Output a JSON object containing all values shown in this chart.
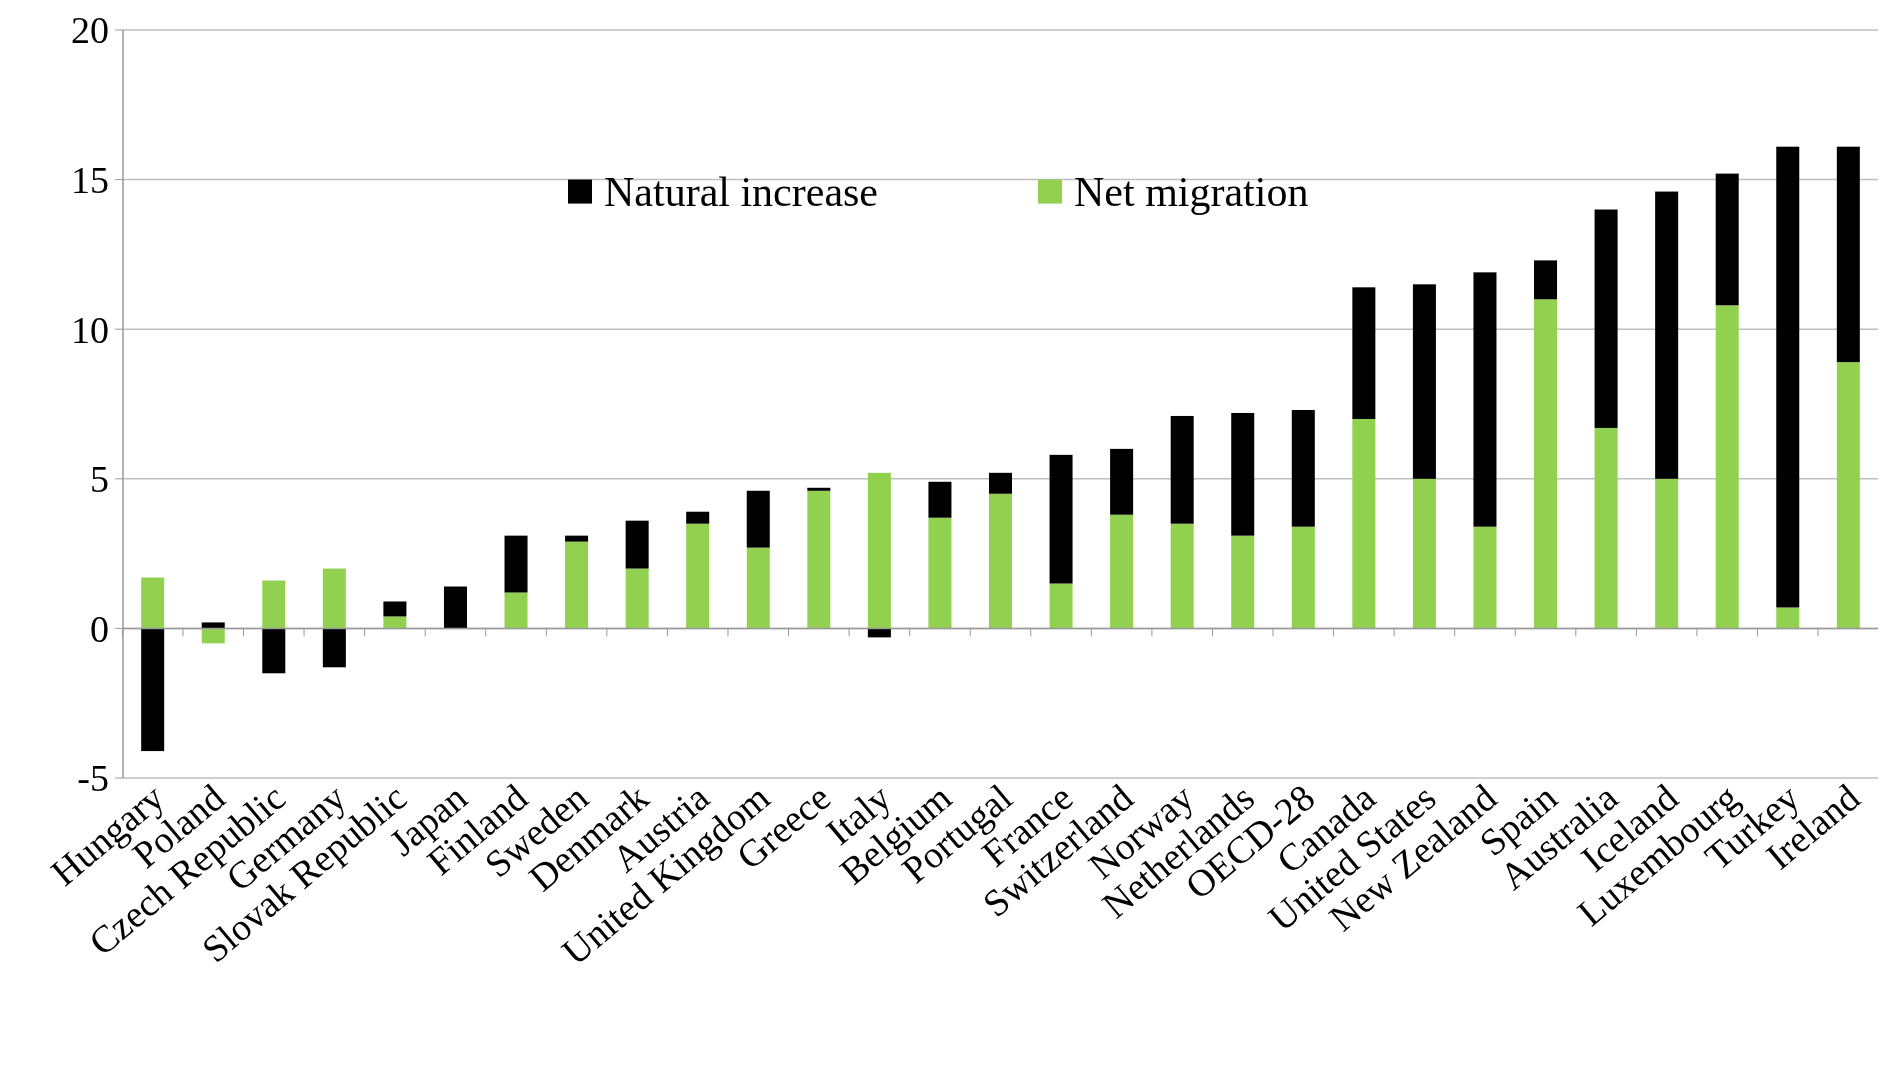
{
  "chart_data": {
    "type": "bar",
    "stacked": true,
    "categories": [
      "Hungary",
      "Poland",
      "Czech Republic",
      "Germany",
      "Slovak Republic",
      "Japan",
      "Finland",
      "Sweden",
      "Denmark",
      "Austria",
      "United Kingdom",
      "Greece",
      "Italy",
      "Belgium",
      "Portugal",
      "France",
      "Switzerland",
      "Norway",
      "Netherlands",
      "OECD-28",
      "Canada",
      "United States",
      "New Zealand",
      "Spain",
      "Australia",
      "Iceland",
      "Luxembourg",
      "Turkey",
      "Ireland"
    ],
    "series": [
      {
        "name": "Net migration",
        "color": "#92d050",
        "values": [
          1.7,
          -0.5,
          1.6,
          2.0,
          0.4,
          0,
          1.2,
          2.9,
          2.0,
          3.5,
          2.7,
          4.6,
          5.2,
          3.7,
          4.5,
          1.5,
          3.8,
          3.5,
          3.1,
          3.4,
          7.0,
          5.0,
          3.4,
          11.0,
          6.7,
          5.0,
          10.8,
          0.7,
          8.9
        ]
      },
      {
        "name": "Natural increase",
        "color": "#000000",
        "values": [
          -4.1,
          0.2,
          -1.5,
          -1.3,
          0.5,
          1.4,
          1.9,
          0.2,
          1.6,
          0.4,
          1.9,
          0.1,
          -0.3,
          1.2,
          0.7,
          4.3,
          2.2,
          3.6,
          4.1,
          3.9,
          4.4,
          6.5,
          8.5,
          1.3,
          7.3,
          9.6,
          4.4,
          15.4,
          7.2
        ]
      }
    ],
    "ylim": [
      -5,
      20
    ],
    "yticks": [
      {
        "value": -5,
        "label": "-5"
      },
      0,
      5,
      10,
      15,
      20
    ],
    "grid": "y",
    "legend": "top"
  }
}
